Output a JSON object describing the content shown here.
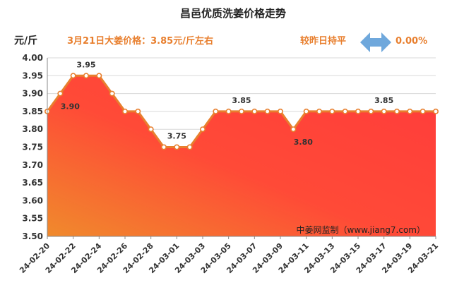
{
  "header": {
    "title": "昌邑优质洗姜价格走势",
    "unit": "元/斤",
    "price_note": "3月21日大姜价格：3.85元/斤左右",
    "trend_note": "较昨日持平",
    "trend_pct": "0.00%",
    "trend_icon": "double-arrow-icon"
  },
  "watermark": "中姜网监制（www.jiang7.com）",
  "colors": {
    "accent": "#e87f2e",
    "line": "#e87f2e",
    "area_top": "#ff3b3b",
    "area_bottom": "#f08a2c",
    "arrow": "#6fa8dc"
  },
  "chart_data": {
    "type": "area",
    "ylim": [
      3.5,
      4.0
    ],
    "yticks": [
      "3.50",
      "3.55",
      "3.60",
      "3.65",
      "3.70",
      "3.75",
      "3.80",
      "3.85",
      "3.90",
      "3.95",
      "4.00"
    ],
    "x": [
      "24-02-20",
      "24-02-21",
      "24-02-22",
      "24-02-23",
      "24-02-24",
      "24-02-25",
      "24-02-26",
      "24-02-27",
      "24-02-28",
      "24-02-29",
      "24-03-01",
      "24-03-02",
      "24-03-03",
      "24-03-04",
      "24-03-05",
      "24-03-06",
      "24-03-07",
      "24-03-08",
      "24-03-09",
      "24-03-10",
      "24-03-11",
      "24-03-12",
      "24-03-13",
      "24-03-14",
      "24-03-15",
      "24-03-16",
      "24-03-17",
      "24-03-18",
      "24-03-19",
      "24-03-20",
      "24-03-21"
    ],
    "xtick_labels": [
      "24-02-20",
      "24-02-22",
      "24-02-24",
      "24-02-26",
      "24-02-28",
      "24-03-01",
      "24-03-03",
      "24-03-05",
      "24-03-07",
      "24-03-09",
      "24-03-11",
      "24-03-13",
      "24-03-15",
      "24-03-17",
      "24-03-19",
      "24-03-21"
    ],
    "values": [
      3.85,
      3.9,
      3.95,
      3.95,
      3.95,
      3.9,
      3.85,
      3.85,
      3.8,
      3.75,
      3.75,
      3.75,
      3.8,
      3.85,
      3.85,
      3.85,
      3.85,
      3.85,
      3.85,
      3.8,
      3.85,
      3.85,
      3.85,
      3.85,
      3.85,
      3.85,
      3.85,
      3.85,
      3.85,
      3.85,
      3.85
    ],
    "data_labels": [
      {
        "index": 1,
        "text": "3.90"
      },
      {
        "index": 3,
        "text": "3.95"
      },
      {
        "index": 10,
        "text": "3.75"
      },
      {
        "index": 15,
        "text": "3.85"
      },
      {
        "index": 19,
        "text": "3.80"
      },
      {
        "index": 26,
        "text": "3.85"
      }
    ],
    "grid": true
  }
}
